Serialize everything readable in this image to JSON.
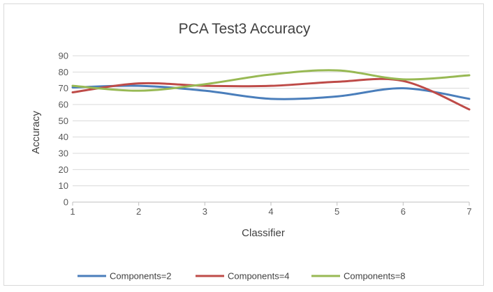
{
  "chart_data": {
    "type": "line",
    "title": "PCA Test3 Accuracy",
    "xlabel": "Classifier",
    "ylabel": "Accuracy",
    "xlim": [
      1,
      7
    ],
    "ylim": [
      0,
      90
    ],
    "x_ticks": [
      1,
      2,
      3,
      4,
      5,
      6,
      7
    ],
    "y_ticks": [
      0,
      10,
      20,
      30,
      40,
      50,
      60,
      70,
      80,
      90
    ],
    "grid": true,
    "legend_position": "bottom",
    "x": [
      1,
      2,
      3,
      4,
      5,
      6,
      7
    ],
    "series": [
      {
        "name": "Components=2",
        "color": "#4a7ebb",
        "values": [
          70.5,
          71.5,
          68.5,
          63.5,
          65,
          70,
          63.5
        ]
      },
      {
        "name": "Components=4",
        "color": "#be4b48",
        "values": [
          67.5,
          73,
          71.5,
          71.5,
          74,
          74.5,
          57
        ]
      },
      {
        "name": "Components=8",
        "color": "#98b954",
        "values": [
          71.5,
          68.5,
          72.5,
          78.5,
          81,
          75.5,
          78
        ]
      }
    ]
  }
}
